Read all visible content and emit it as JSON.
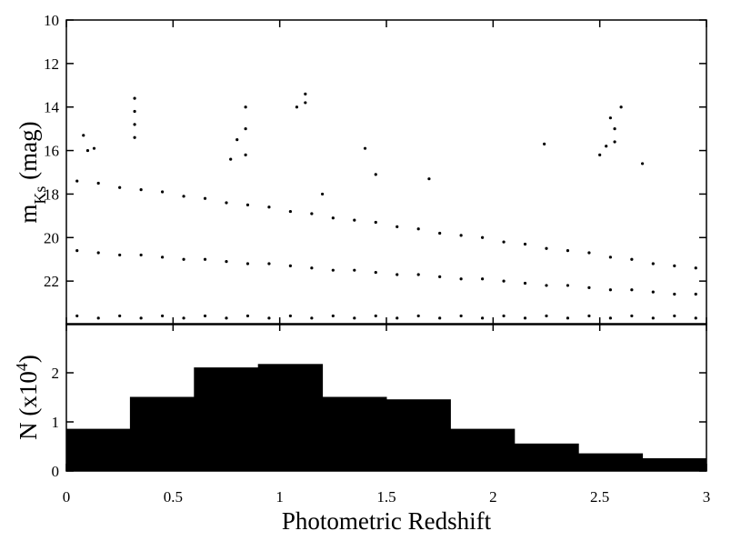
{
  "chart_data": [
    {
      "type": "scatter",
      "ylabel": [
        "m",
        "Ks",
        " (mag)"
      ],
      "color": "#000000",
      "xlim": [
        0,
        3
      ],
      "xticks": [
        0,
        0.5,
        1,
        1.5,
        2,
        2.5,
        3
      ],
      "ylim": [
        10,
        24
      ],
      "yticks": [
        10,
        12,
        14,
        16,
        18,
        20,
        22
      ],
      "y_inverted": true,
      "x": [
        0.32,
        0.32,
        0.32,
        0.32,
        0.84,
        0.84,
        0.84,
        0.8,
        1.08,
        1.12,
        1.12,
        2.55,
        2.57,
        2.57,
        2.6,
        2.53,
        2.5,
        2.24,
        1.4,
        0.08,
        0.1,
        0.13,
        2.7,
        1.45,
        1.7,
        1.2,
        0.77,
        0.05,
        0.15,
        0.25,
        0.35,
        0.45,
        0.55,
        0.65,
        0.75,
        0.85,
        0.95,
        1.05,
        1.15,
        1.25,
        1.35,
        1.45,
        1.55,
        1.65,
        1.75,
        1.85,
        1.95,
        2.05,
        2.15,
        2.25,
        2.35,
        2.45,
        2.55,
        2.65,
        2.75,
        2.85,
        2.95,
        0.05,
        0.15,
        0.25,
        0.35,
        0.45,
        0.55,
        0.65,
        0.75,
        0.85,
        0.95,
        1.05,
        1.15,
        1.25,
        1.35,
        1.45,
        1.55,
        1.65,
        1.75,
        1.85,
        1.95,
        2.05,
        2.15,
        2.25,
        2.35,
        2.45,
        2.55,
        2.65,
        2.75,
        2.85,
        2.95,
        0.05,
        0.15,
        0.25,
        0.35,
        0.45,
        0.55,
        0.65,
        0.75,
        0.85,
        0.95,
        1.05,
        1.15,
        1.25,
        1.35,
        1.45,
        1.55,
        1.65,
        1.75,
        1.85,
        1.95,
        2.05,
        2.15,
        2.25,
        2.35,
        2.45,
        2.55,
        2.65,
        2.75,
        2.85,
        2.95
      ],
      "y": [
        13.6,
        14.2,
        14.8,
        15.4,
        14.0,
        15.0,
        16.2,
        15.5,
        14.0,
        13.4,
        13.8,
        14.5,
        15.0,
        15.6,
        14.0,
        15.8,
        16.2,
        15.7,
        15.9,
        15.3,
        16.0,
        15.9,
        16.6,
        17.1,
        17.3,
        18.0,
        16.4,
        17.4,
        17.5,
        17.7,
        17.8,
        17.9,
        18.1,
        18.2,
        18.4,
        18.5,
        18.6,
        18.8,
        18.9,
        19.1,
        19.2,
        19.3,
        19.5,
        19.6,
        19.8,
        19.9,
        20.0,
        20.2,
        20.3,
        20.5,
        20.6,
        20.7,
        20.9,
        21.0,
        21.2,
        21.3,
        21.4,
        20.6,
        20.7,
        20.8,
        20.8,
        20.9,
        21.0,
        21.0,
        21.1,
        21.2,
        21.2,
        21.3,
        21.4,
        21.5,
        21.5,
        21.6,
        21.7,
        21.7,
        21.8,
        21.9,
        21.9,
        22.0,
        22.1,
        22.2,
        22.2,
        22.3,
        22.4,
        22.4,
        22.5,
        22.6,
        22.6,
        23.6,
        23.7,
        23.6,
        23.7,
        23.6,
        23.7,
        23.6,
        23.7,
        23.6,
        23.7,
        23.6,
        23.7,
        23.6,
        23.7,
        23.6,
        23.7,
        23.6,
        23.7,
        23.6,
        23.7,
        23.6,
        23.7,
        23.6,
        23.7,
        23.6,
        23.7,
        23.6,
        23.7,
        23.6,
        23.7
      ]
    },
    {
      "type": "histogram",
      "ylabel": [
        "N (x10",
        "4",
        ")"
      ],
      "xlabel": "Photometric Redshift",
      "color": "#000000",
      "bins": [
        0,
        0.3,
        0.6,
        0.9,
        1.2,
        1.5,
        1.8,
        2.1,
        2.4,
        2.7,
        3.0
      ],
      "values": [
        0.85,
        1.5,
        2.1,
        2.17,
        1.5,
        1.45,
        0.85,
        0.55,
        0.35,
        0.25
      ],
      "xlim": [
        0,
        3
      ],
      "xticks": [
        0,
        0.5,
        1,
        1.5,
        2,
        2.5,
        3
      ],
      "ylim": [
        0,
        3
      ],
      "yticks": [
        0,
        1,
        2
      ]
    }
  ]
}
